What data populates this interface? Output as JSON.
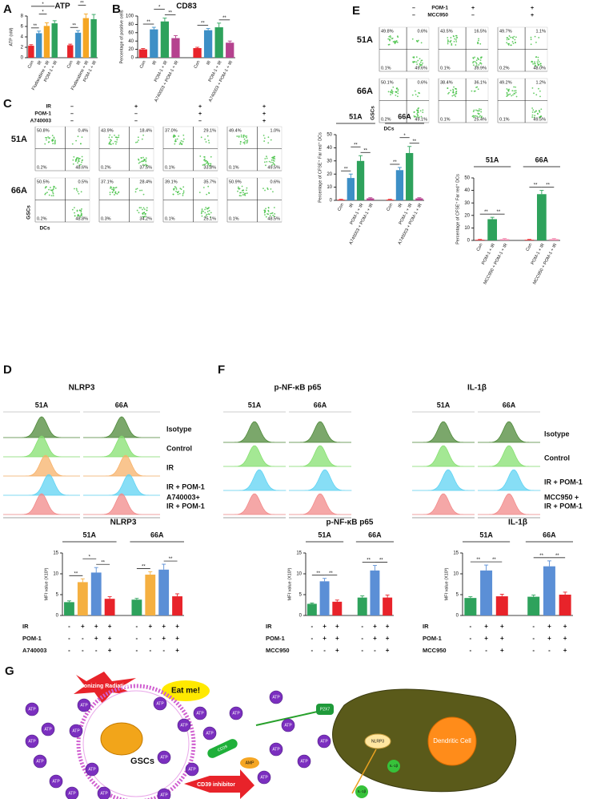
{
  "chart_data": [
    {
      "type": "bar",
      "panel": "A",
      "title": "ATP",
      "y_label": "ATP (nM)",
      "categories": [
        "Con",
        "IR",
        "Fludarabine + IR",
        "POM-1 + IR",
        "Con",
        "IR",
        "Fludarabine + IR",
        "POM-1 + IR"
      ],
      "values": [
        2.3,
        4.7,
        6.1,
        6.6,
        2.4,
        4.8,
        7.6,
        7.4
      ],
      "errors": [
        0.2,
        0.4,
        0.6,
        0.5,
        0.2,
        0.4,
        0.8,
        0.9
      ],
      "colors": [
        "#e8232a",
        "#3d8fc6",
        "#f5a623",
        "#2ea25c",
        "#e8232a",
        "#3d8fc6",
        "#f5a623",
        "#2ea25c"
      ],
      "ylim": [
        0,
        8
      ],
      "yticks": [
        0,
        2,
        4,
        6,
        8
      ],
      "significance": [
        "**",
        "*",
        "*",
        "**",
        "**",
        "**"
      ]
    },
    {
      "type": "bar",
      "panel": "B",
      "title": "CD83",
      "y_label": "Percentage of positive cells",
      "categories": [
        "Con",
        "IR",
        "POM-1 + IR",
        "A740003 + POM-1 + IR",
        "Con",
        "IR",
        "POM-1 + IR",
        "A740003 + POM-1 + IR"
      ],
      "values": [
        20,
        68,
        87,
        47,
        23,
        66,
        73,
        36
      ],
      "errors": [
        2,
        5,
        8,
        6,
        2,
        4,
        10,
        4
      ],
      "colors": [
        "#e8232a",
        "#3d8fc6",
        "#2ea25c",
        "#b5428e",
        "#e8232a",
        "#3d8fc6",
        "#2ea25c",
        "#b5428e"
      ],
      "ylim": [
        0,
        100
      ],
      "yticks": [
        0,
        20,
        40,
        60,
        80,
        100
      ],
      "significance": [
        "**",
        "*",
        "**",
        "**",
        "**"
      ]
    },
    {
      "type": "bar",
      "y_label": "Percentage of CFSE⁺ Far red⁺ DCs",
      "groups": [
        "51A",
        "66A"
      ],
      "categories": [
        "Con",
        "IR",
        "POM-1 + IR",
        "A740003 + POM-1 + IR",
        "Con",
        "IR",
        "POM-1 + IR",
        "A740003 + POM-1 + IR"
      ],
      "values": [
        0.5,
        17,
        30,
        1.5,
        0.5,
        23,
        36,
        1.5
      ],
      "errors": [
        0.3,
        3,
        4,
        0.5,
        0.3,
        2,
        5,
        0.5
      ],
      "colors": [
        "#e8232a",
        "#3d8fc6",
        "#2ea25c",
        "#b5428e",
        "#e8232a",
        "#3d8fc6",
        "#2ea25c",
        "#b5428e"
      ],
      "ylim": [
        0,
        50
      ],
      "yticks": [
        0,
        10,
        20,
        30,
        40,
        50
      ],
      "significance": [
        "**",
        "**",
        "**",
        "**",
        "*",
        "**"
      ]
    },
    {
      "type": "bar",
      "y_label": "Percentage of CFSE⁺ Far red⁺ DCs",
      "groups": [
        "51A",
        "66A"
      ],
      "categories": [
        "Con",
        "POM-1 + IR",
        "MCC950 + POM-1 + IR",
        "Con",
        "POM-1 + IR",
        "MCC950 + POM-1 + IR"
      ],
      "values": [
        0.5,
        17,
        1,
        0.5,
        37,
        1
      ],
      "errors": [
        0.3,
        1.5,
        0.5,
        0.3,
        3,
        0.5
      ],
      "colors": [
        "#e8232a",
        "#2ea25c",
        "#f08cb0",
        "#e8232a",
        "#2ea25c",
        "#f08cb0"
      ],
      "ylim": [
        0,
        50
      ],
      "yticks": [
        0,
        10,
        20,
        30,
        40,
        50
      ],
      "significance": [
        "**",
        "**",
        "**",
        "**"
      ]
    },
    {
      "type": "bar",
      "title": "NLRP3",
      "y_label": "MFI value (X10³)",
      "groups": [
        "51A",
        "66A"
      ],
      "values": [
        3.2,
        8,
        10.3,
        4,
        3.8,
        9.8,
        11,
        4.6
      ],
      "errors": [
        0.3,
        0.8,
        1.2,
        0.5,
        0.3,
        0.7,
        1.3,
        0.6
      ],
      "colors": [
        "#2ea25c",
        "#f5b041",
        "#5b8fd6",
        "#e8232a",
        "#2ea25c",
        "#f5b041",
        "#5b8fd6",
        "#e8232a"
      ],
      "ylim": [
        0,
        15
      ],
      "yticks": [
        0,
        5,
        10,
        15
      ],
      "significance": [
        "**",
        "*",
        "**",
        "**",
        "**"
      ],
      "conditions": [
        {
          "name": "IR",
          "signs": [
            "-",
            "+",
            "+",
            "+",
            "-",
            "+",
            "+",
            "+"
          ]
        },
        {
          "name": "POM-1",
          "signs": [
            "-",
            "-",
            "+",
            "+",
            "-",
            "-",
            "+",
            "+"
          ]
        },
        {
          "name": "A740003",
          "signs": [
            "-",
            "-",
            "-",
            "+",
            "-",
            "-",
            "-",
            "+"
          ]
        }
      ]
    },
    {
      "type": "bar",
      "title": "p-NF-κB p65",
      "y_label": "MFI value (X10³)",
      "groups": [
        "51A",
        "66A"
      ],
      "values": [
        2.8,
        8.2,
        3.3,
        4.3,
        10.8,
        4.3
      ],
      "errors": [
        0.2,
        0.7,
        0.4,
        0.4,
        1.2,
        0.6
      ],
      "colors": [
        "#2ea25c",
        "#5b8fd6",
        "#e8232a",
        "#2ea25c",
        "#5b8fd6",
        "#e8232a"
      ],
      "ylim": [
        0,
        15
      ],
      "yticks": [
        0,
        5,
        10,
        15
      ],
      "significance": [
        "**",
        "**",
        "**",
        "**"
      ],
      "conditions": [
        {
          "name": "IR",
          "signs": [
            "-",
            "+",
            "+",
            "-",
            "+",
            "+"
          ]
        },
        {
          "name": "POM-1",
          "signs": [
            "-",
            "+",
            "+",
            "-",
            "+",
            "+"
          ]
        },
        {
          "name": "MCC950",
          "signs": [
            "-",
            "-",
            "+",
            "-",
            "-",
            "+"
          ]
        }
      ]
    },
    {
      "type": "bar",
      "title": "IL-1β",
      "y_label": "MFI value (X10³)",
      "groups": [
        "51A",
        "66A"
      ],
      "values": [
        4.2,
        10.8,
        4.6,
        4.5,
        11.8,
        5.0
      ],
      "errors": [
        0.3,
        1.3,
        0.5,
        0.4,
        1.3,
        0.6
      ],
      "colors": [
        "#2ea25c",
        "#5b8fd6",
        "#e8232a",
        "#2ea25c",
        "#5b8fd6",
        "#e8232a"
      ],
      "ylim": [
        0,
        15
      ],
      "yticks": [
        0,
        5,
        10,
        15
      ],
      "significance": [
        "**",
        "**",
        "**",
        "**"
      ],
      "conditions": [
        {
          "name": "IR",
          "signs": [
            "-",
            "+",
            "+",
            "-",
            "+",
            "+"
          ]
        },
        {
          "name": "POM-1",
          "signs": [
            "-",
            "+",
            "+",
            "-",
            "+",
            "+"
          ]
        },
        {
          "name": "MCC950",
          "signs": [
            "-",
            "-",
            "+",
            "-",
            "-",
            "+"
          ]
        }
      ]
    }
  ],
  "flow_c": {
    "panel": "C",
    "conditions": [
      {
        "name": "IR",
        "signs": [
          "–",
          "+",
          "+",
          "+"
        ]
      },
      {
        "name": "POM-1",
        "signs": [
          "–",
          "–",
          "+",
          "+"
        ]
      },
      {
        "name": "A740003",
        "signs": [
          "–",
          "–",
          "–",
          "+"
        ]
      }
    ],
    "rows": [
      "51A",
      "66A"
    ],
    "x_label": "DCs",
    "y_label": "GSCs",
    "plots": [
      [
        [
          "50.8%",
          "0.4%",
          "0.2%",
          "48.6%"
        ],
        [
          "43.9%",
          "18.4%",
          "0.2%",
          "37.5%"
        ],
        [
          "37.0%",
          "29.1%",
          "0.1%",
          "33.8%"
        ],
        [
          "49.4%",
          "1.0%",
          "0.1%",
          "49.5%"
        ]
      ],
      [
        [
          "50.5%",
          "0.5%",
          "0.2%",
          "48.8%"
        ],
        [
          "37.1%",
          "28.4%",
          "0.3%",
          "34.2%"
        ],
        [
          "39.1%",
          "35.7%",
          "0.1%",
          "25.1%"
        ],
        [
          "50.9%",
          "0.6%",
          "0.1%",
          "48.5%"
        ]
      ]
    ]
  },
  "flow_e": {
    "panel": "E",
    "conditions": [
      {
        "name": "POM-1",
        "signs": [
          "–",
          "+",
          "+"
        ]
      },
      {
        "name": "MCC950",
        "signs": [
          "–",
          "–",
          "+"
        ]
      }
    ],
    "rows": [
      "51A",
      "66A"
    ],
    "x_label": "DCs",
    "y_label": "GSCs",
    "plots": [
      [
        [
          "49.8%",
          "0.6%",
          "0.1%",
          "49.6%"
        ],
        [
          "43.5%",
          "16.5%",
          "0.1%",
          "39.9%"
        ],
        [
          "49.7%",
          "1.1%",
          "0.2%",
          "48.0%"
        ]
      ],
      [
        [
          "50.1%",
          "0.6%",
          "0.2%",
          "49.1%"
        ],
        [
          "38.4%",
          "36.1%",
          "0.1%",
          "25.4%"
        ],
        [
          "49.2%",
          "1.2%",
          "0.1%",
          "49.5%"
        ]
      ]
    ]
  },
  "hist_d": {
    "panel": "D",
    "markers": [
      {
        "title": "NLRP3",
        "columns": [
          "51A",
          "66A"
        ]
      }
    ],
    "rows": [
      [
        "Isotype"
      ],
      [
        "Control"
      ],
      [
        "IR"
      ],
      [
        "IR + POM-1"
      ],
      [
        "A740003+",
        "IR + POM-1"
      ]
    ],
    "colors": [
      "#4f8a3a",
      "#86e070",
      "#f7b26a",
      "#5fd3f3",
      "#f28a8a"
    ]
  },
  "hist_f": {
    "panel": "F",
    "markers": [
      {
        "title": "p-NF-κB p65",
        "columns": [
          "51A",
          "66A"
        ]
      },
      {
        "title": "IL-1β",
        "columns": [
          "51A",
          "66A"
        ]
      }
    ],
    "rows": [
      [
        "Isotype"
      ],
      [
        "Control"
      ],
      [
        "IR + POM-1"
      ],
      [
        "MCC950 +",
        "IR + POM-1"
      ]
    ],
    "colors": [
      "#4f8a3a",
      "#86e070",
      "#5fd3f3",
      "#f28a8a"
    ]
  },
  "diagram": {
    "panel": "G",
    "radiation": "Ionizing Radiation",
    "eat_me": "Eat me!",
    "gscs": "GSCs",
    "dendritic_cell": "Dendritic Cell",
    "cd39_inhibitor": "CD39 inhibitor",
    "nlrp3": "NLRP3",
    "il1b": "IL-1β",
    "p2x7": "P2X7",
    "atp": "ATP",
    "amp": "AMP",
    "cd39": "CD39"
  }
}
